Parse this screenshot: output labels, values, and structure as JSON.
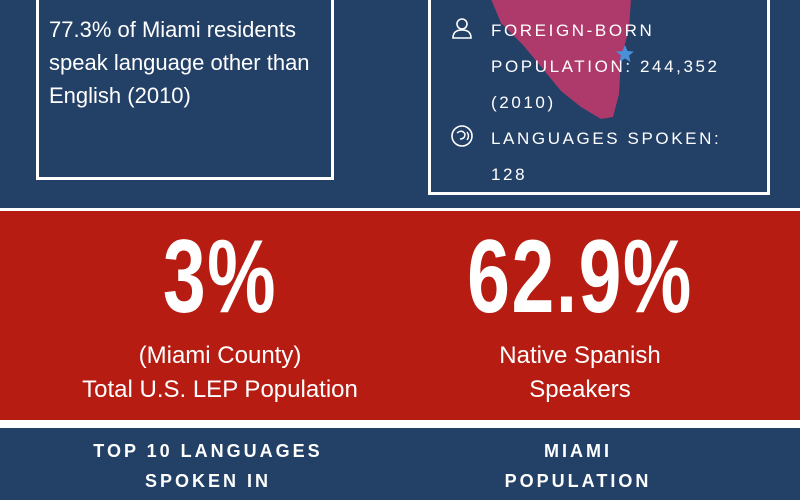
{
  "left_box": {
    "text": "77.3% of Miami residents speak language other than English (2010)"
  },
  "right_box": {
    "foreign_born": "FOREIGN-BORN POPULATION: 244,352 (2010)",
    "languages": "LANGUAGES SPOKEN: 128",
    "icons": [
      "person-icon",
      "speech-icon"
    ],
    "map_color": "#c0396b",
    "star_color": "#4a90d9"
  },
  "stats": [
    {
      "big": "3%",
      "sub_line1": "(Miami County)",
      "sub_line2": "Total U.S. LEP Population"
    },
    {
      "big": "62.9%",
      "sub_line1": "Native Spanish",
      "sub_line2": "Speakers"
    }
  ],
  "headings": [
    {
      "line1": "TOP 10 LANGUAGES",
      "line2": "SPOKEN IN"
    },
    {
      "line1": "MIAMI",
      "line2": "POPULATION"
    }
  ],
  "colors": {
    "navy": "#234067",
    "red": "#b71c12",
    "white": "#ffffff"
  }
}
